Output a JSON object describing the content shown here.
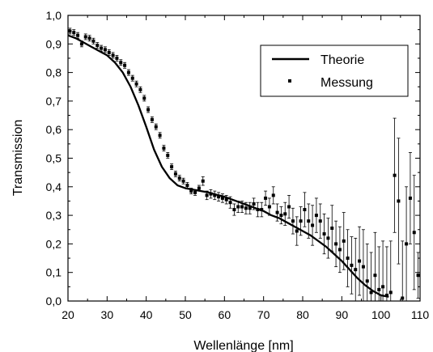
{
  "chart_data": {
    "type": "scatter",
    "xlabel": "Wellenlänge [nm]",
    "ylabel": "Transmission",
    "xlim": [
      20,
      110
    ],
    "ylim": [
      0.0,
      1.0
    ],
    "x_ticks": [
      20,
      30,
      40,
      50,
      60,
      70,
      80,
      90,
      100,
      110
    ],
    "y_ticks": [
      0.0,
      0.1,
      0.2,
      0.3,
      0.4,
      0.5,
      0.6,
      0.7,
      0.8,
      0.9,
      1.0
    ],
    "x_tick_labels": [
      "20",
      "30",
      "40",
      "50",
      "60",
      "70",
      "80",
      "90",
      "100",
      "110"
    ],
    "y_tick_labels": [
      "0,0",
      "0,1",
      "0,2",
      "0,3",
      "0,4",
      "0,5",
      "0,6",
      "0,7",
      "0,8",
      "0,9",
      "1,0"
    ],
    "legend": {
      "position": "top-right"
    },
    "series": [
      {
        "name": "Theorie",
        "kind": "line",
        "color": "#000000",
        "x": [
          20,
          22,
          24,
          26,
          28,
          30,
          32,
          34,
          36,
          38,
          40,
          42,
          44,
          46,
          48,
          50,
          52,
          54,
          56,
          58,
          60,
          62,
          64,
          66,
          68,
          70,
          72,
          74,
          76,
          78,
          80,
          82,
          84,
          86,
          88,
          90,
          92,
          94,
          96,
          98,
          100,
          102
        ],
        "y": [
          0.93,
          0.92,
          0.905,
          0.89,
          0.875,
          0.86,
          0.835,
          0.8,
          0.75,
          0.685,
          0.61,
          0.53,
          0.47,
          0.43,
          0.405,
          0.395,
          0.39,
          0.385,
          0.38,
          0.372,
          0.365,
          0.355,
          0.345,
          0.335,
          0.325,
          0.315,
          0.3,
          0.29,
          0.275,
          0.26,
          0.245,
          0.23,
          0.21,
          0.19,
          0.165,
          0.14,
          0.11,
          0.08,
          0.055,
          0.035,
          0.02,
          0.015
        ]
      },
      {
        "name": "Messung",
        "kind": "scatter",
        "color": "#000000",
        "x": [
          20.5,
          21.5,
          22.5,
          23.5,
          24.5,
          25.5,
          26.5,
          27.5,
          28.5,
          29.5,
          30.5,
          31.5,
          32.5,
          33.5,
          34.5,
          35.5,
          36.5,
          37.5,
          38.5,
          39.5,
          40.5,
          41.5,
          42.5,
          43.5,
          44.5,
          45.5,
          46.5,
          47.5,
          48.5,
          49.5,
          50.5,
          51.5,
          52.5,
          53.5,
          54.5,
          55.5,
          56.5,
          57.5,
          58.5,
          59.5,
          60.5,
          61.5,
          62.5,
          63.5,
          64.5,
          65.5,
          66.5,
          67.5,
          68.5,
          69.5,
          70.5,
          71.5,
          72.5,
          73.5,
          74.5,
          75.5,
          76.5,
          77.5,
          78.5,
          79.5,
          80.5,
          81.5,
          82.5,
          83.5,
          84.5,
          85.5,
          86.5,
          87.5,
          88.5,
          89.5,
          90.5,
          91.5,
          92.5,
          93.5,
          94.5,
          95.5,
          96.5,
          97.5,
          98.5,
          99.5,
          100.5,
          101.5,
          102.5,
          103.5,
          104.5,
          105.5,
          106.5,
          107.5,
          108.5,
          109.5
        ],
        "y": [
          0.945,
          0.94,
          0.93,
          0.9,
          0.925,
          0.92,
          0.91,
          0.895,
          0.885,
          0.88,
          0.87,
          0.86,
          0.85,
          0.835,
          0.825,
          0.8,
          0.78,
          0.76,
          0.74,
          0.71,
          0.67,
          0.635,
          0.61,
          0.58,
          0.535,
          0.51,
          0.47,
          0.445,
          0.43,
          0.42,
          0.405,
          0.385,
          0.38,
          0.395,
          0.42,
          0.37,
          0.375,
          0.37,
          0.365,
          0.36,
          0.355,
          0.345,
          0.32,
          0.33,
          0.33,
          0.325,
          0.325,
          0.34,
          0.32,
          0.32,
          0.36,
          0.33,
          0.37,
          0.31,
          0.3,
          0.305,
          0.33,
          0.28,
          0.245,
          0.28,
          0.32,
          0.28,
          0.265,
          0.3,
          0.28,
          0.235,
          0.22,
          0.255,
          0.2,
          0.18,
          0.21,
          0.15,
          0.125,
          0.11,
          0.14,
          0.12,
          0.07,
          0.03,
          0.09,
          0.04,
          0.05,
          0.02,
          0.03,
          0.44,
          0.35,
          0.01,
          0.2,
          0.36,
          0.24,
          0.09
        ],
        "err": [
          0.01,
          0.01,
          0.01,
          0.01,
          0.01,
          0.01,
          0.01,
          0.01,
          0.01,
          0.01,
          0.01,
          0.01,
          0.01,
          0.01,
          0.01,
          0.01,
          0.01,
          0.01,
          0.01,
          0.01,
          0.01,
          0.01,
          0.01,
          0.01,
          0.01,
          0.01,
          0.01,
          0.01,
          0.01,
          0.01,
          0.01,
          0.01,
          0.01,
          0.01,
          0.015,
          0.015,
          0.015,
          0.015,
          0.015,
          0.015,
          0.015,
          0.02,
          0.02,
          0.02,
          0.02,
          0.02,
          0.02,
          0.02,
          0.025,
          0.025,
          0.025,
          0.03,
          0.03,
          0.03,
          0.03,
          0.04,
          0.04,
          0.045,
          0.05,
          0.05,
          0.06,
          0.06,
          0.07,
          0.06,
          0.06,
          0.07,
          0.07,
          0.08,
          0.08,
          0.08,
          0.1,
          0.1,
          0.1,
          0.11,
          0.12,
          0.13,
          0.13,
          0.14,
          0.15,
          0.15,
          0.16,
          0.17,
          0.18,
          0.2,
          0.22,
          0.2,
          0.2,
          0.16,
          0.2,
          0.08
        ]
      }
    ]
  }
}
